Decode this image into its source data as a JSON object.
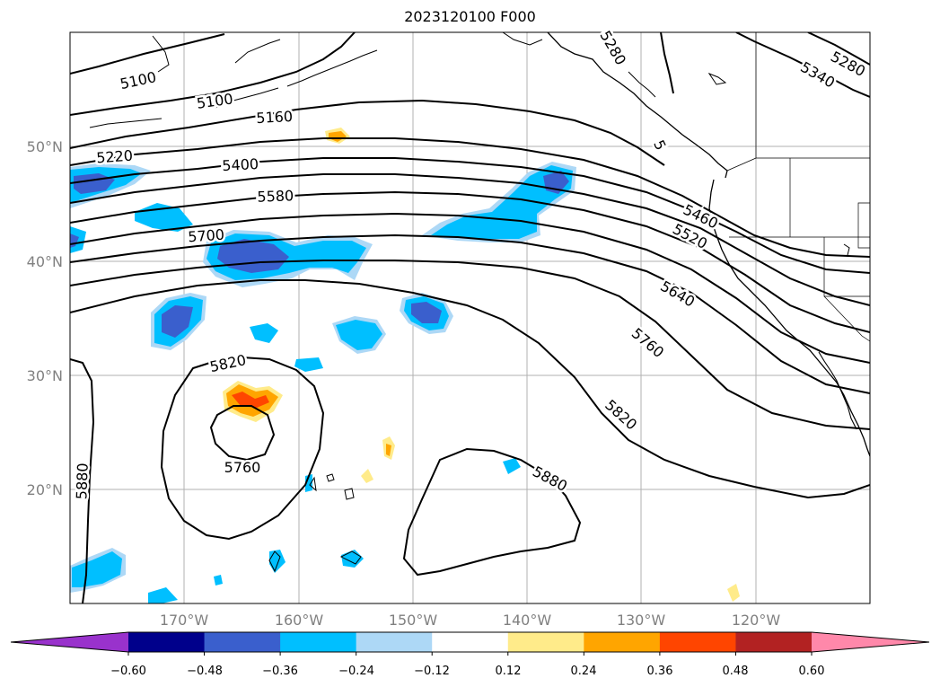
{
  "title": "2023120100 F000",
  "map": {
    "lat_ticks": [
      "50°N",
      "40°N",
      "30°N",
      "20°N"
    ],
    "lon_ticks": [
      "170°W",
      "160°W",
      "150°W",
      "140°W",
      "130°W",
      "120°W"
    ],
    "contour_labels": [
      "5100",
      "5100",
      "5160",
      "5220",
      "5280",
      "5280",
      "5340",
      "5400",
      "5460",
      "5520",
      "5580",
      "5640",
      "5700",
      "5760",
      "5820",
      "5820",
      "5760",
      "5880",
      "5880",
      "5"
    ]
  },
  "colorbar": {
    "ticks": [
      "−0.60",
      "−0.48",
      "−0.36",
      "−0.24",
      "−0.12",
      "0.12",
      "0.24",
      "0.36",
      "0.48",
      "0.60"
    ],
    "colors": [
      "#9932cc",
      "#00008b",
      "#3a5fcd",
      "#00bfff",
      "#add8f6",
      "#ffffff",
      "#ffeb8a",
      "#ffa500",
      "#ff4500",
      "#b22222",
      "#ff88aa"
    ]
  }
}
